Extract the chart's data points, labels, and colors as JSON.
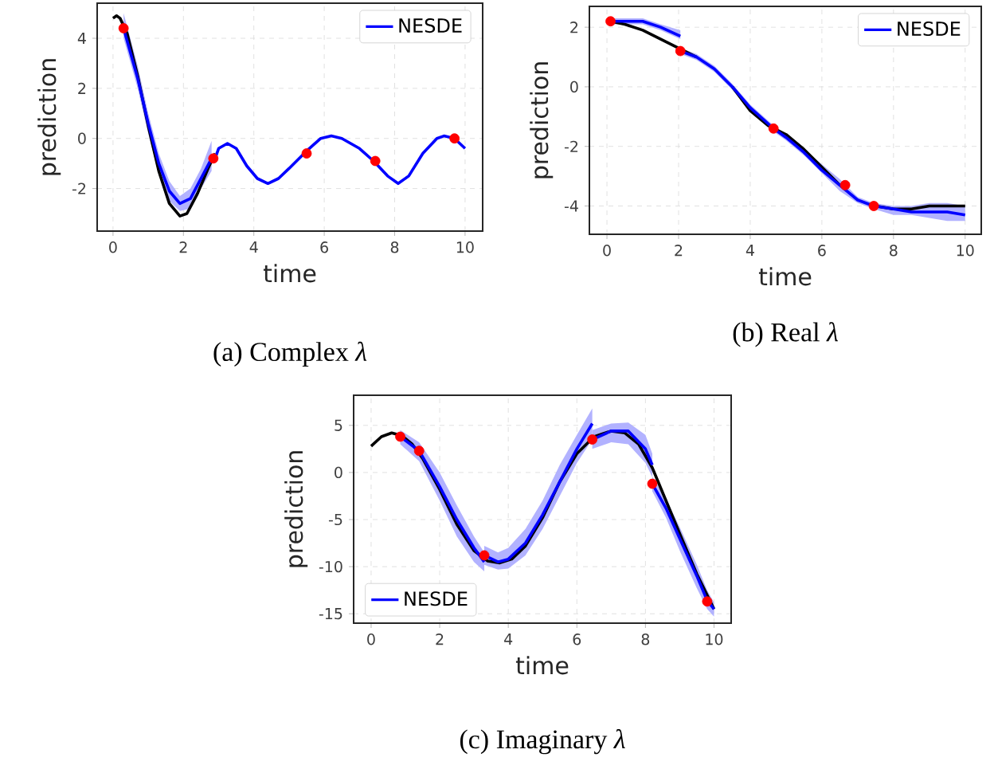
{
  "chart_data": [
    {
      "type": "line",
      "title": "(a) Complex *λ*",
      "xlabel": "time",
      "ylabel": "prediction",
      "xlim": [
        -0.45,
        10.5
      ],
      "ylim": [
        -3.7,
        5.4
      ],
      "xticks": [
        0,
        2,
        4,
        6,
        8,
        10
      ],
      "yticks": [
        -2,
        0,
        2,
        4
      ],
      "grid": true,
      "legend": "top right",
      "series": [
        {
          "color": "#000000",
          "x": [
            0.0,
            0.1,
            0.2,
            0.4,
            0.7,
            1.0,
            1.3,
            1.6,
            1.9,
            2.1,
            2.4,
            2.7,
            2.9
          ],
          "values": [
            4.8,
            4.9,
            4.8,
            4.2,
            2.5,
            0.5,
            -1.3,
            -2.6,
            -3.1,
            -3.0,
            -2.2,
            -1.2,
            -0.6
          ]
        },
        {
          "name": "NESDE",
          "color": "#0000ff",
          "x": [
            0.3,
            0.7,
            1.0,
            1.3,
            1.6,
            1.9,
            2.2,
            2.5,
            2.8
          ],
          "values": [
            4.4,
            2.4,
            0.6,
            -1.0,
            -2.1,
            -2.6,
            -2.4,
            -1.6,
            -0.8
          ],
          "lower": [
            4.0,
            2.0,
            0.2,
            -1.4,
            -2.5,
            -2.9,
            -2.8,
            -2.0,
            -1.3
          ],
          "upper": [
            5.0,
            2.9,
            1.0,
            -0.6,
            -1.7,
            -2.3,
            -2.0,
            -1.2,
            -0.1
          ]
        },
        {
          "color": "#0000ff",
          "x": [
            2.9,
            3.0,
            3.25,
            3.5,
            3.8,
            4.1,
            4.4,
            4.7,
            5.0,
            5.5,
            5.9,
            6.2,
            6.5,
            7.0,
            7.4,
            7.8,
            8.1,
            8.4,
            8.8,
            9.2,
            9.4,
            9.7,
            10.0
          ],
          "values": [
            -0.8,
            -0.4,
            -0.2,
            -0.4,
            -1.1,
            -1.6,
            -1.8,
            -1.6,
            -1.2,
            -0.5,
            0.0,
            0.1,
            0.0,
            -0.4,
            -0.9,
            -1.5,
            -1.8,
            -1.5,
            -0.6,
            0.0,
            0.1,
            0.0,
            -0.4
          ]
        },
        {
          "type": "scatter",
          "color": "#ff0000",
          "x": [
            0.3,
            2.85,
            5.5,
            7.45,
            9.7
          ],
          "values": [
            4.4,
            -0.8,
            -0.6,
            -0.9,
            0.0
          ]
        }
      ]
    },
    {
      "type": "line",
      "title": "(b) Real *λ*",
      "xlabel": "time",
      "ylabel": "prediction",
      "xlim": [
        -0.49,
        10.45
      ],
      "ylim": [
        -4.95,
        2.7
      ],
      "xticks": [
        0,
        2,
        4,
        6,
        8,
        10
      ],
      "yticks": [
        -4,
        -2,
        0,
        2
      ],
      "grid": true,
      "legend": "top right",
      "series": [
        {
          "color": "#000000",
          "x": [
            0.1,
            0.5,
            1.0,
            1.5,
            2.0,
            2.5,
            3.0,
            3.5,
            4.0,
            4.5,
            5.0,
            5.5,
            6.0,
            6.5,
            7.0,
            7.5,
            8.0,
            8.5,
            9.0,
            9.5,
            10.0
          ],
          "values": [
            2.2,
            2.1,
            1.9,
            1.6,
            1.3,
            1.0,
            null,
            0.0,
            -0.8,
            -1.3,
            -1.6,
            -2.1,
            -2.7,
            -3.3,
            null,
            -4.0,
            -4.1,
            -4.1,
            -4.0,
            -4.0,
            -4.0
          ]
        },
        {
          "name": "NESDE",
          "color": "#0000ff",
          "x": [
            0.1,
            0.5,
            1.0,
            1.5,
            2.05
          ],
          "values": [
            2.2,
            2.2,
            2.2,
            2.0,
            1.7
          ],
          "lower": [
            2.1,
            2.1,
            2.1,
            1.9,
            1.6
          ],
          "upper": [
            2.3,
            2.3,
            2.3,
            2.1,
            1.9
          ]
        },
        {
          "color": "#0000ff",
          "x": [
            2.05,
            2.5,
            3.0,
            3.5,
            4.0,
            4.65,
            5.0,
            5.5,
            6.0,
            6.5,
            7.0,
            7.45,
            8.0,
            8.5,
            9.0,
            9.5,
            10.0
          ],
          "values": [
            1.2,
            1.0,
            0.6,
            0.0,
            -0.7,
            -1.4,
            -1.7,
            -2.2,
            -2.8,
            -3.3,
            -3.8,
            -4.0,
            -4.1,
            -4.2,
            -4.2,
            -4.2,
            -4.3
          ],
          "lower": [
            1.1,
            0.9,
            0.5,
            -0.1,
            -0.8,
            -1.5,
            -1.8,
            -2.3,
            -2.9,
            -3.5,
            -3.9,
            -4.1,
            -4.3,
            -4.3,
            -4.4,
            -4.5,
            -4.5
          ],
          "upper": [
            1.3,
            1.1,
            0.7,
            0.1,
            -0.6,
            -1.3,
            -1.6,
            -2.1,
            -2.6,
            -3.1,
            -3.7,
            -3.9,
            -4.0,
            -4.0,
            -3.9,
            -3.9,
            -4.0
          ]
        },
        {
          "type": "scatter",
          "color": "#ff0000",
          "x": [
            0.1,
            2.05,
            4.65,
            6.65,
            7.45
          ],
          "values": [
            2.2,
            1.2,
            -1.4,
            -3.3,
            -4.0
          ]
        }
      ]
    },
    {
      "type": "line",
      "title": "(c) Imaginary *λ*",
      "xlabel": "time",
      "ylabel": "prediction",
      "xlim": [
        -0.51,
        10.5
      ],
      "ylim": [
        -16,
        8.2
      ],
      "xticks": [
        0,
        2,
        4,
        6,
        8,
        10
      ],
      "yticks": [
        -15,
        -10,
        -5,
        0,
        5
      ],
      "grid": true,
      "legend": "bottom left",
      "series": [
        {
          "color": "#000000",
          "x": [
            0.0,
            0.3,
            0.6,
            0.9,
            1.2,
            1.5,
            2.0,
            2.5,
            3.0,
            3.4,
            3.75,
            4.1,
            4.5,
            5.0,
            5.5,
            6.0,
            6.5,
            7.0,
            7.4,
            7.8,
            8.2,
            8.6,
            9.0,
            9.5,
            10.0
          ],
          "values": [
            2.8,
            3.8,
            4.2,
            3.9,
            3.0,
            1.5,
            -1.8,
            -5.5,
            -8.3,
            -9.4,
            -9.6,
            -9.2,
            -7.8,
            -4.8,
            -1.0,
            2.0,
            3.8,
            4.4,
            4.2,
            3.0,
            0.5,
            -3.0,
            -6.5,
            -10.8,
            -14.5
          ]
        },
        {
          "name": "NESDE",
          "color": "#0000ff",
          "x": [
            0.85,
            1.4,
            2.0,
            2.5,
            3.0,
            3.3
          ],
          "values": [
            3.8,
            2.3,
            -1.5,
            -5.0,
            -8.0,
            -9.5
          ],
          "lower": [
            3.0,
            1.2,
            -3.0,
            -6.8,
            -9.5,
            -10.5
          ],
          "upper": [
            4.5,
            3.2,
            0.0,
            -3.5,
            -6.8,
            -8.5
          ]
        },
        {
          "color": "#0000ff",
          "x": [
            3.3,
            3.7,
            4.0,
            4.5,
            5.0,
            5.5,
            6.0,
            6.45
          ],
          "values": [
            -8.8,
            -9.5,
            -9.2,
            -7.5,
            -4.5,
            -1.0,
            2.5,
            5.2
          ],
          "lower": [
            -9.8,
            -10.3,
            -10.2,
            -8.8,
            -6.0,
            -2.5,
            1.0,
            3.5
          ],
          "upper": [
            -7.8,
            -8.5,
            -8.0,
            -6.0,
            -3.0,
            0.8,
            4.0,
            6.8
          ]
        },
        {
          "color": "#0000ff",
          "x": [
            6.45,
            7.0,
            7.5,
            8.0,
            8.2
          ],
          "values": [
            3.5,
            4.4,
            4.4,
            2.5,
            0.8
          ],
          "lower": [
            2.5,
            3.2,
            3.0,
            1.0,
            -0.5
          ],
          "upper": [
            4.5,
            5.2,
            5.3,
            4.0,
            2.0
          ]
        },
        {
          "color": "#0000ff",
          "x": [
            8.2,
            8.6,
            9.0,
            9.5,
            9.8,
            10.0
          ],
          "values": [
            -1.2,
            -3.8,
            -7.0,
            -11.0,
            -13.6,
            -14.5
          ],
          "lower": [
            -2.0,
            -4.8,
            -8.3,
            -12.3,
            -14.5,
            -15.3
          ],
          "upper": [
            -0.4,
            -2.8,
            -5.8,
            -9.8,
            -12.5,
            -13.8
          ]
        },
        {
          "type": "scatter",
          "color": "#ff0000",
          "x": [
            0.85,
            1.4,
            3.3,
            6.45,
            8.2,
            9.8
          ],
          "values": [
            3.8,
            2.3,
            -8.8,
            3.5,
            -1.2,
            -13.7
          ]
        }
      ]
    }
  ]
}
